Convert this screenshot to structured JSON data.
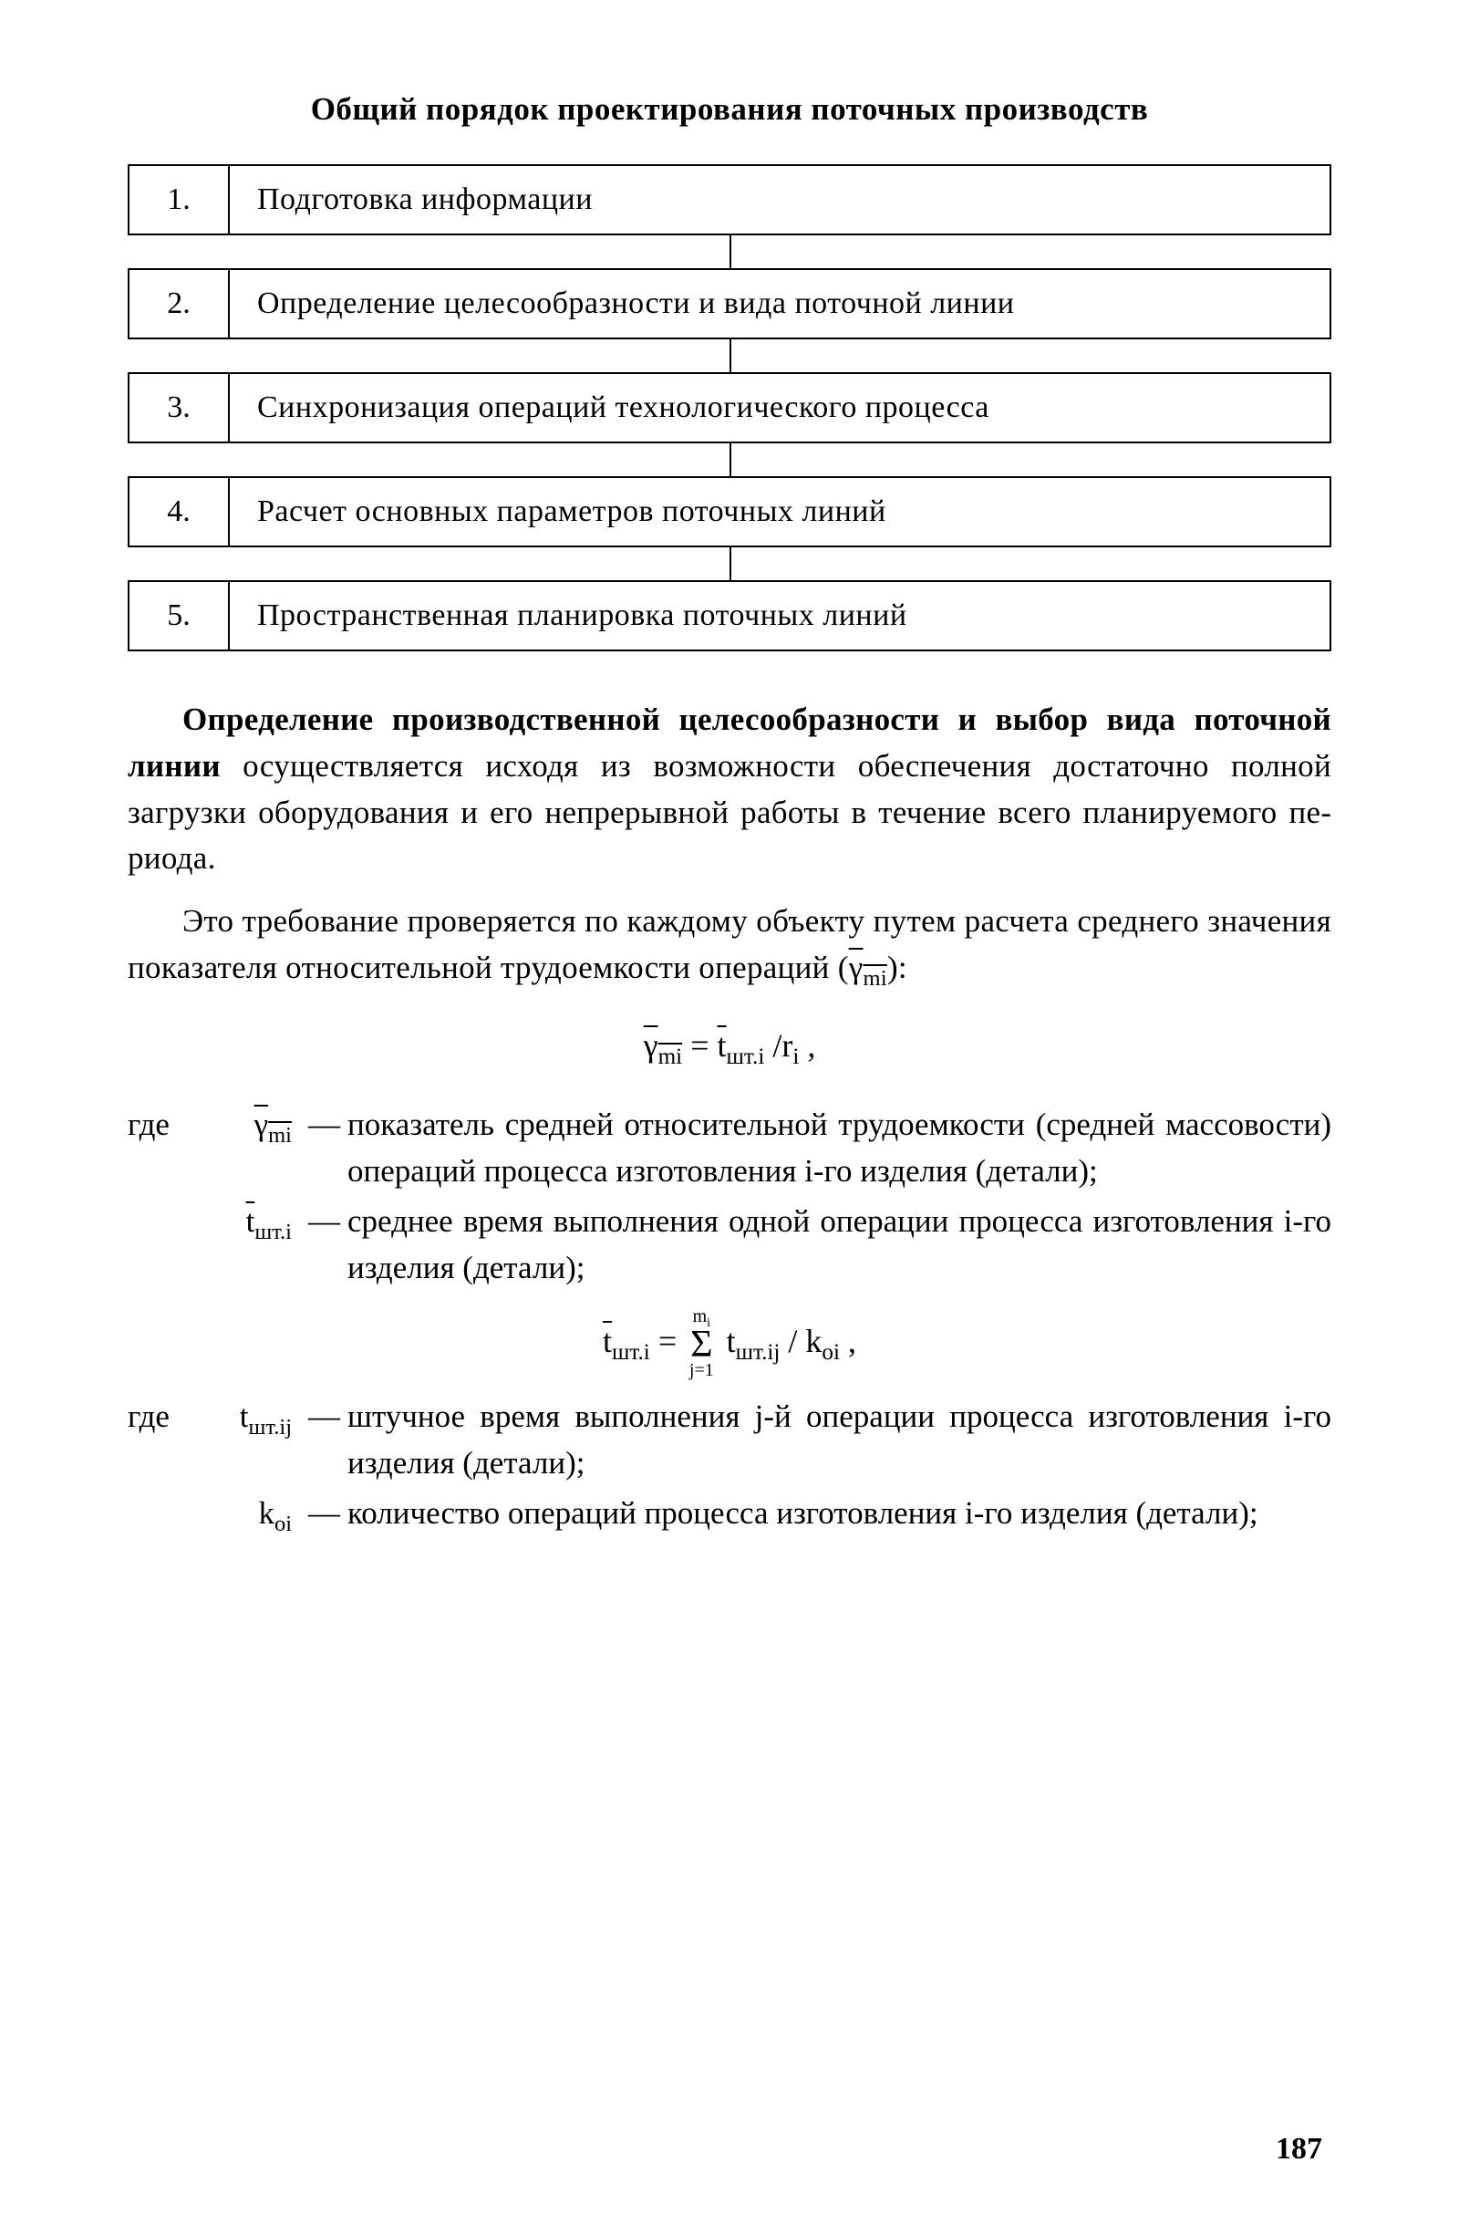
{
  "title": "Общий порядок проектирования поточных производств",
  "steps": [
    {
      "num": "1.",
      "text": "Подготовка  информации"
    },
    {
      "num": "2.",
      "text": "Определение целесообразности и вида поточной линии"
    },
    {
      "num": "3.",
      "text": "Синхронизация  операций  технологического  процесса"
    },
    {
      "num": "4.",
      "text": "Расчет  основных  параметров  поточных  линий"
    },
    {
      "num": "5.",
      "text": "Пространственная  планировка  поточных  линий"
    }
  ],
  "para1_bold": "Определение производственной целесообразности и выбор вида поточной линии",
  "para1_rest": " осуществляется исходя из возможнос­ти обеспечения достаточно полной загрузки оборудования и его непрерывной работы в течение всего планируемого пе­риода.",
  "para2_a": "Это требование проверяется по каждому объекту путем расчета среднего значения показателя относительной трудо­емкости операций (",
  "para2_b": "):",
  "gamma_sym": "γ",
  "gamma_sub": "mi",
  "formula1_lhs_sym": "γ",
  "formula1_lhs_sub": "mi",
  "formula1_eq": " = ",
  "formula1_mid_sym": "t",
  "formula1_mid_sub": "шт.i",
  "formula1_rhs": " /r",
  "formula1_rhs_sub": "i",
  "formula1_end": "  ,",
  "where": "где",
  "def1_sym_base": "γ",
  "def1_sym_sub": "mi",
  "def1_desc": "показатель средней относительной трудоемкос­ти (средней массовости) операций процесса изго­товления i-го изделия (детали);",
  "def2_sym_base": "t",
  "def2_sym_sub": "шт.i",
  "def2_desc": "среднее время выполнения одной операции про­цесса изготовления i-го изделия (детали);",
  "formula2_lhs_base": "t",
  "formula2_lhs_sub": "шт.i",
  "formula2_eq": " = ",
  "sigma_top": "m",
  "sigma_top_sub": "i",
  "sigma_bot": "j=1",
  "formula2_term_base": " t",
  "formula2_term_sub": "шт.ij",
  "formula2_div": " / k",
  "formula2_div_sub": "oi",
  "formula2_end": "  ,",
  "faint": "",
  "def3_sym_base": "t",
  "def3_sym_sub": "шт.ij",
  "def3_desc": "штучное время выполнения j-й операции процес­са изготовления i-го изделия (детали);",
  "def4_sym_base": "k",
  "def4_sym_sub": "oi",
  "def4_desc": "количество операций процесса изготовления i-го изделия (детали);",
  "dash": "—",
  "page_num": "187",
  "colors": {
    "text": "#000000",
    "bg": "#ffffff",
    "border": "#000000"
  }
}
